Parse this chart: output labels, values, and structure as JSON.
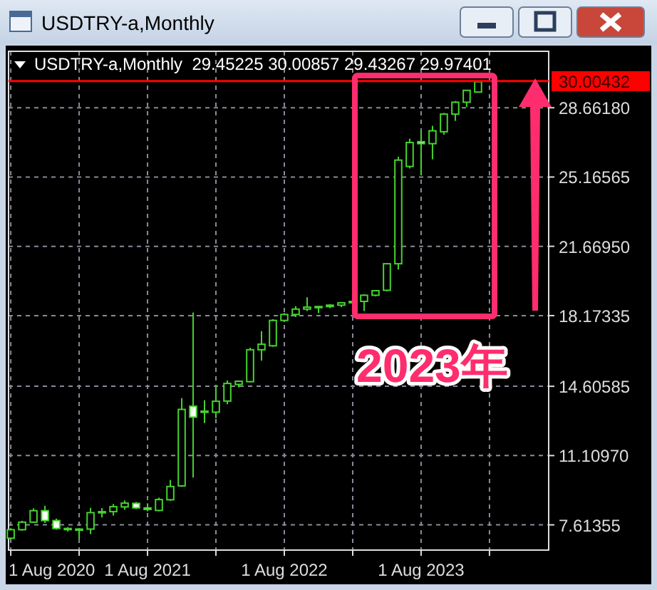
{
  "chart_data": {
    "type": "candlestick",
    "title": "USDTRY-a,Monthly",
    "subtitle": "USDTRY-a,Monthly  29.45225 30.00857 29.43267 29.97401",
    "color": "#46d22e",
    "x": [
      "2020-08",
      "2020-09",
      "2020-10",
      "2020-11",
      "2020-12",
      "2021-01",
      "2021-02",
      "2021-03",
      "2021-04",
      "2021-05",
      "2021-06",
      "2021-07",
      "2021-08",
      "2021-09",
      "2021-10",
      "2021-11",
      "2021-12",
      "2022-01",
      "2022-02",
      "2022-03",
      "2022-04",
      "2022-05",
      "2022-06",
      "2022-07",
      "2022-08",
      "2022-09",
      "2022-10",
      "2022-11",
      "2022-12",
      "2023-01",
      "2023-02",
      "2023-03",
      "2023-04",
      "2023-05",
      "2023-06",
      "2023-07",
      "2023-08",
      "2023-09",
      "2023-10",
      "2023-11",
      "2023-12",
      "2024-01"
    ],
    "ohlc": [
      [
        6.94,
        7.45,
        6.85,
        7.37
      ],
      [
        7.37,
        7.82,
        7.32,
        7.75
      ],
      [
        7.75,
        8.45,
        7.72,
        8.33
      ],
      [
        8.33,
        8.58,
        7.71,
        7.83
      ],
      [
        7.83,
        7.93,
        7.37,
        7.43
      ],
      [
        7.43,
        7.5,
        7.28,
        7.38
      ],
      [
        7.38,
        7.45,
        6.89,
        7.4
      ],
      [
        7.4,
        8.47,
        7.15,
        8.23
      ],
      [
        8.22,
        8.46,
        7.99,
        8.28
      ],
      [
        8.28,
        8.67,
        8.08,
        8.53
      ],
      [
        8.52,
        8.85,
        8.38,
        8.71
      ],
      [
        8.7,
        8.77,
        8.41,
        8.47
      ],
      [
        8.47,
        8.7,
        8.3,
        8.39
      ],
      [
        8.34,
        8.99,
        8.3,
        8.89
      ],
      [
        8.88,
        9.88,
        8.83,
        9.55
      ],
      [
        9.58,
        14.01,
        9.53,
        13.44
      ],
      [
        13.6,
        18.33,
        10.0,
        13.05
      ],
      [
        13.3,
        13.9,
        12.75,
        13.35
      ],
      [
        13.3,
        14.68,
        13.0,
        13.85
      ],
      [
        13.86,
        14.9,
        13.7,
        14.75
      ],
      [
        14.7,
        14.9,
        14.55,
        14.86
      ],
      [
        14.84,
        16.55,
        14.8,
        16.45
      ],
      [
        16.45,
        17.39,
        15.9,
        16.73
      ],
      [
        16.65,
        17.99,
        16.6,
        17.93
      ],
      [
        17.93,
        18.3,
        17.85,
        18.23
      ],
      [
        18.23,
        18.65,
        18.1,
        18.5
      ],
      [
        18.5,
        19.1,
        18.4,
        18.6
      ],
      [
        18.6,
        18.66,
        18.3,
        18.63
      ],
      [
        18.63,
        18.75,
        18.55,
        18.7
      ],
      [
        18.7,
        18.85,
        18.6,
        18.82
      ],
      [
        18.82,
        18.95,
        18.7,
        18.89
      ],
      [
        18.89,
        19.25,
        18.4,
        19.2
      ],
      [
        19.2,
        19.45,
        19.15,
        19.43
      ],
      [
        19.45,
        20.8,
        19.4,
        20.79
      ],
      [
        20.79,
        26.19,
        20.5,
        26.02
      ],
      [
        25.7,
        27.1,
        25.6,
        26.91
      ],
      [
        26.95,
        27.5,
        25.25,
        26.85
      ],
      [
        26.85,
        27.75,
        26.06,
        27.5
      ],
      [
        27.45,
        28.4,
        27.3,
        28.34
      ],
      [
        28.34,
        29.0,
        28.0,
        28.94
      ],
      [
        28.94,
        29.55,
        28.7,
        29.54
      ],
      [
        29.45225,
        30.00857,
        29.43267,
        29.97401
      ]
    ],
    "xlim": [
      "2020-07-26",
      "2024-07-07"
    ],
    "xticks": [
      {
        "value": "2020-08",
        "label": "1 Aug 2020"
      },
      {
        "value": "2021-02",
        "label": null
      },
      {
        "value": "2021-08",
        "label": "1 Aug 2021"
      },
      {
        "value": "2022-02",
        "label": null
      },
      {
        "value": "2022-08",
        "label": "1 Aug 2022"
      },
      {
        "value": "2023-02",
        "label": null
      },
      {
        "value": "2023-08",
        "label": "1 Aug 2023"
      },
      {
        "value": "2024-02",
        "label": null
      }
    ],
    "ylim": [
      6.34,
      31.51
    ],
    "yticks": [
      {
        "value": 7.61355,
        "label": "7.61355"
      },
      {
        "value": 11.1097,
        "label": "11.10970"
      },
      {
        "value": 14.60585,
        "label": "14.60585"
      },
      {
        "value": 18.17335,
        "label": "18.17335"
      },
      {
        "value": 21.6695,
        "label": "21.66950"
      },
      {
        "value": 25.16565,
        "label": "25.16565"
      },
      {
        "value": 28.6618,
        "label": "28.66180"
      }
    ],
    "ref_lines": [
      {
        "axis": "y",
        "value": 30.00432,
        "label": "30.00432",
        "color": "#ff0000"
      }
    ],
    "grid": true,
    "annotations": [
      "2023年"
    ]
  }
}
